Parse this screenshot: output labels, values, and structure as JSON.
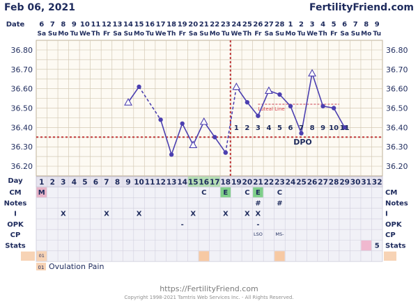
{
  "header": {
    "date": "Feb 06, 2021",
    "brand": "FertilityFriend.com",
    "date_row_label": "Date",
    "day_row_label": "Day"
  },
  "chart_data": {
    "type": "line",
    "dates": [
      "6",
      "7",
      "8",
      "9",
      "10",
      "11",
      "12",
      "13",
      "14",
      "15",
      "16",
      "17",
      "18",
      "19",
      "20",
      "21",
      "22",
      "23",
      "24",
      "25",
      "26",
      "27",
      "28",
      "1",
      "2",
      "3",
      "4",
      "5",
      "6",
      "7",
      "8",
      "9"
    ],
    "weekdays": [
      "Sa",
      "Su",
      "Mo",
      "Tu",
      "We",
      "Th",
      "Fr",
      "Sa",
      "Su",
      "Mo",
      "Tu",
      "We",
      "Th",
      "Fr",
      "Sa",
      "Su",
      "Mo",
      "Tu",
      "We",
      "Th",
      "Fr",
      "Sa",
      "Su",
      "Mo",
      "Tu",
      "We",
      "Th",
      "Fr",
      "Sa",
      "Su",
      "Mo",
      "Tu"
    ],
    "cycle_days": [
      "1",
      "2",
      "3",
      "4",
      "5",
      "6",
      "7",
      "8",
      "9",
      "10",
      "11",
      "12",
      "13",
      "14",
      "15",
      "16",
      "17",
      "18",
      "19",
      "20",
      "21",
      "22",
      "23",
      "24",
      "25",
      "26",
      "27",
      "28",
      "29",
      "30",
      "31",
      "32"
    ],
    "y_ticks": [
      "36.80",
      "36.70",
      "36.60",
      "36.50",
      "36.40",
      "36.30",
      "36.20"
    ],
    "ylim": [
      36.15,
      36.85
    ],
    "temperatures": [
      {
        "day": 9,
        "value": 36.53,
        "open": true
      },
      {
        "day": 10,
        "value": 36.61,
        "open": false
      },
      {
        "day": 12,
        "value": 36.44,
        "open": false
      },
      {
        "day": 13,
        "value": 36.26,
        "open": false
      },
      {
        "day": 14,
        "value": 36.42,
        "open": false
      },
      {
        "day": 15,
        "value": 36.31,
        "open": true
      },
      {
        "day": 16,
        "value": 36.43,
        "open": true
      },
      {
        "day": 17,
        "value": 36.35,
        "open": false
      },
      {
        "day": 18,
        "value": 36.27,
        "open": false
      },
      {
        "day": 19,
        "value": 36.61,
        "open": true
      },
      {
        "day": 20,
        "value": 36.53,
        "open": false
      },
      {
        "day": 21,
        "value": 36.46,
        "open": false
      },
      {
        "day": 22,
        "value": 36.59,
        "open": true
      },
      {
        "day": 23,
        "value": 36.57,
        "open": false
      },
      {
        "day": 24,
        "value": 36.51,
        "open": false
      },
      {
        "day": 25,
        "value": 36.37,
        "open": false
      },
      {
        "day": 26,
        "value": 36.68,
        "open": true
      },
      {
        "day": 27,
        "value": 36.51,
        "open": false
      },
      {
        "day": 28,
        "value": 36.5,
        "open": false
      },
      {
        "day": 29,
        "value": 36.4,
        "open": false
      }
    ],
    "segments": [
      {
        "from": 9,
        "to": 10,
        "dashed": false
      },
      {
        "from": 10,
        "to": 12,
        "dashed": true
      },
      {
        "from": 12,
        "to": 18,
        "dashed": false
      },
      {
        "from": 18,
        "to": 19,
        "dashed": true
      },
      {
        "from": 19,
        "to": 29,
        "dashed": false
      }
    ],
    "coverline": 36.35,
    "ovulation_day": 18,
    "luteal_line": {
      "value": 36.52,
      "from": 21,
      "to": 28,
      "label": "Luteal Line"
    },
    "dpo_numbers": [
      "1",
      "2",
      "3",
      "4",
      "5",
      "6",
      "7",
      "8",
      "9",
      "10",
      "11"
    ],
    "dpo_label": "DPO",
    "rows": [
      {
        "label": "CM",
        "cells": {
          "1": "M",
          "16": "C",
          "18": "E",
          "20": "C",
          "21": "E",
          "23": "C"
        }
      },
      {
        "label": "Notes",
        "cells": {
          "21": "#",
          "23": "#"
        }
      },
      {
        "label": "I",
        "cells": {
          "3": "X",
          "7": "X",
          "10": "X",
          "15": "X",
          "18": "X",
          "20": "X",
          "21": "X"
        }
      },
      {
        "label": "OPK",
        "cells": {
          "14": "-",
          "21": "-"
        }
      },
      {
        "label": "CP",
        "cells": {
          "21": "LSO",
          "23": "MS-"
        }
      },
      {
        "label": "Stats",
        "cells": {
          "32": "5"
        }
      },
      {
        "label": "",
        "cells": {
          "1": "01"
        }
      }
    ],
    "highlight_cells": [
      {
        "row": 0,
        "day": 1,
        "color": "#e8b4c8"
      },
      {
        "row": 0,
        "day": 18,
        "color": "#7fcf8a"
      },
      {
        "row": 0,
        "day": 21,
        "color": "#7fcf8a"
      },
      {
        "row": 5,
        "day": 31,
        "color": "#f0b8cf"
      },
      {
        "row": 6,
        "day": 1,
        "color": "#f7d3b5"
      },
      {
        "row": 6,
        "day": 16,
        "color": "#f7c9a3"
      },
      {
        "row": 6,
        "day": 23,
        "color": "#f7c9a3"
      }
    ],
    "fertile_days": [
      15,
      16,
      17
    ]
  },
  "legend": {
    "code": "01",
    "text": "Ovulation Pain"
  },
  "footer": {
    "url": "https://FertilityFriend.com",
    "copyright": "Copyright 1998-2021 Tamtris Web Services Inc. - All Rights Reserved."
  },
  "colors": {
    "line": "#4b3fb0",
    "coverline": "#c0393b",
    "grid": "#d4c9b5",
    "text": "#1d2a5c",
    "chart_bg": "#fdfaf3",
    "row_bg": "#f1f1f7"
  }
}
